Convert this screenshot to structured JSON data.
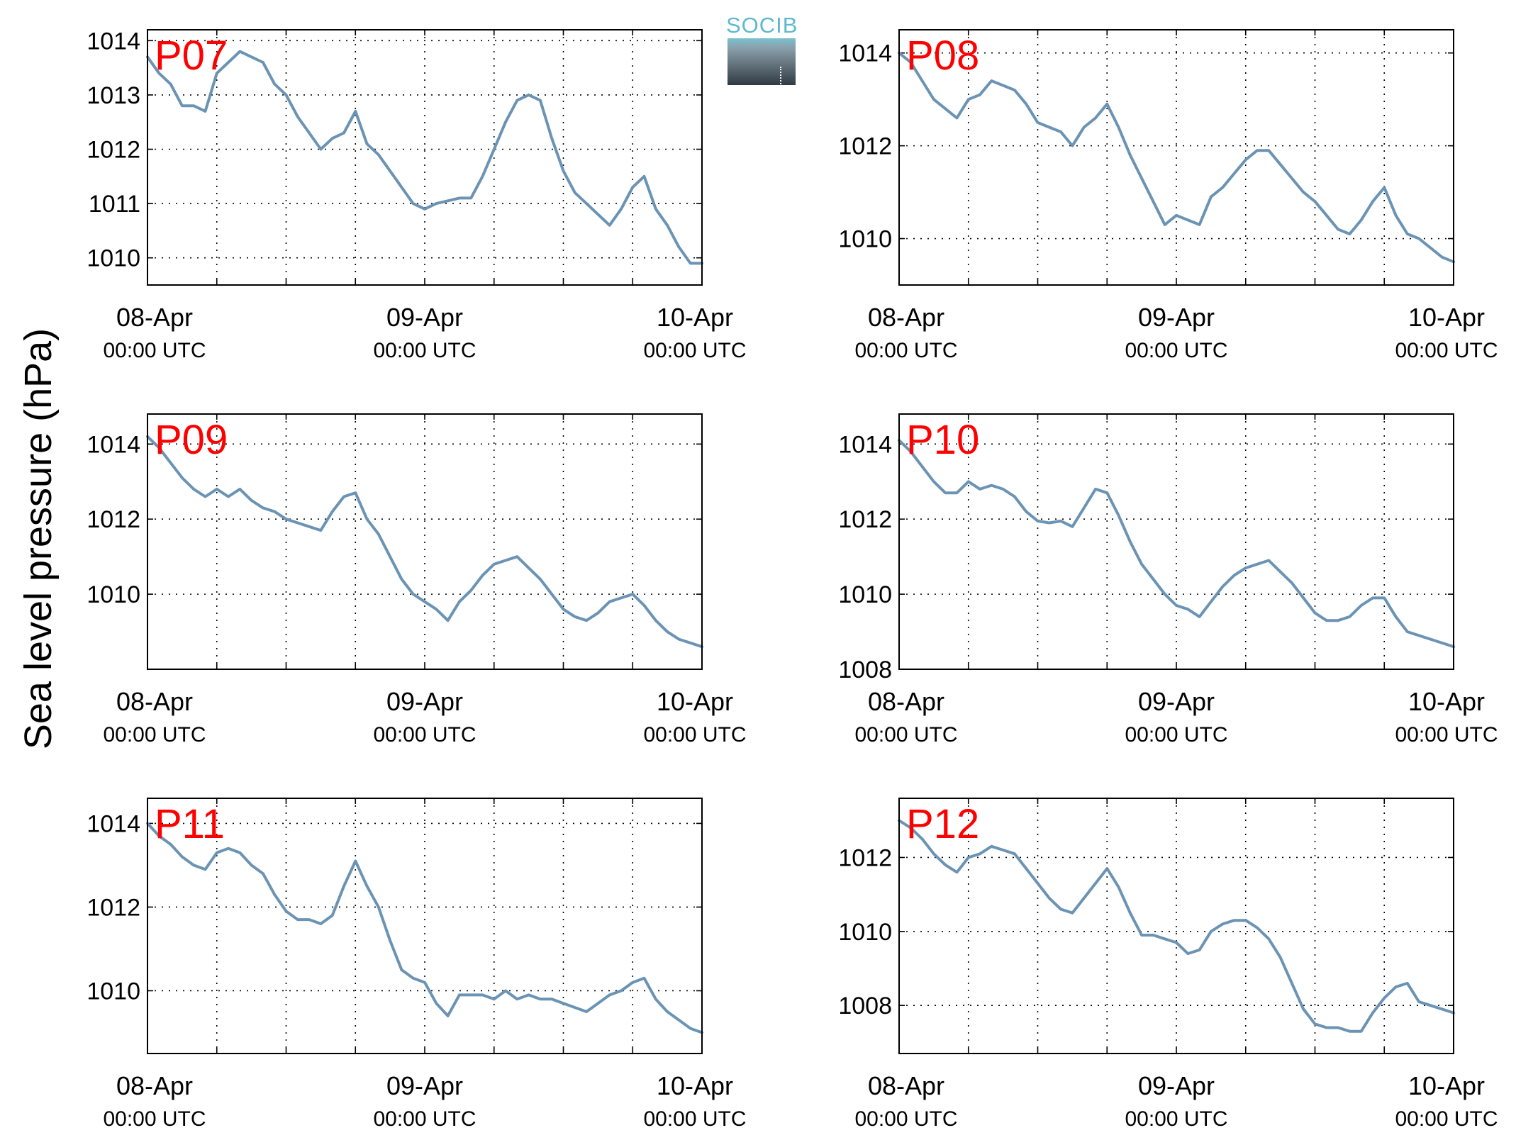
{
  "figure": {
    "ylabel": "Sea level pressure (hPa)",
    "logo_text": "SOCIB",
    "line_color": "#6b93b4",
    "station_label_color": "#ff0000",
    "x_tick_labels": [
      {
        "date": "08-Apr",
        "time": "00:00 UTC"
      },
      {
        "date": "09-Apr",
        "time": "00:00 UTC"
      },
      {
        "date": "10-Apr",
        "time": "00:00 UTC"
      }
    ],
    "grid": "dotted",
    "legend": "none"
  },
  "chart_data": [
    {
      "type": "line",
      "station": "P07",
      "xlabel": "",
      "xlim": [
        "2014-04-08 00:00",
        "2014-04-10 00:00"
      ],
      "ylim": [
        1009.5,
        1014.2
      ],
      "yticks": [
        1010,
        1011,
        1012,
        1013,
        1014
      ],
      "series": [
        {
          "x": [
            "04-08 00:00",
            "04-08 01:00",
            "04-08 02:00",
            "04-08 03:00",
            "04-08 04:00",
            "04-08 05:00",
            "04-08 06:00",
            "04-08 07:00",
            "04-08 08:00",
            "04-08 09:00",
            "04-08 10:00",
            "04-08 11:00",
            "04-08 12:00",
            "04-08 13:00",
            "04-08 14:00",
            "04-08 15:00",
            "04-08 16:00",
            "04-08 17:00",
            "04-08 18:00",
            "04-08 19:00",
            "04-08 20:00",
            "04-08 21:00",
            "04-08 22:00",
            "04-08 23:00",
            "04-09 00:00",
            "04-09 01:00",
            "04-09 02:00",
            "04-09 03:00",
            "04-09 04:00",
            "04-09 05:00",
            "04-09 06:00",
            "04-09 07:00",
            "04-09 08:00",
            "04-09 09:00",
            "04-09 10:00",
            "04-09 11:00",
            "04-09 12:00",
            "04-09 13:00",
            "04-09 14:00",
            "04-09 15:00",
            "04-09 16:00",
            "04-09 17:00",
            "04-09 18:00",
            "04-09 19:00",
            "04-09 20:00",
            "04-09 21:00",
            "04-09 22:00",
            "04-09 23:00",
            "04-10 00:00"
          ],
          "values": [
            1013.7,
            1013.4,
            1013.2,
            1012.8,
            1012.8,
            1012.7,
            1013.4,
            1013.6,
            1013.8,
            1013.7,
            1013.6,
            1013.2,
            1013.0,
            1012.6,
            1012.3,
            1012.0,
            1012.2,
            1012.3,
            1012.7,
            1012.1,
            1011.9,
            1011.6,
            1011.3,
            1011.0,
            1010.9,
            1011.0,
            1011.05,
            1011.1,
            1011.1,
            1011.5,
            1012.0,
            1012.5,
            1012.9,
            1013.0,
            1012.9,
            1012.2,
            1011.6,
            1011.2,
            1011.0,
            1010.8,
            1010.6,
            1010.9,
            1011.3,
            1011.5,
            1010.9,
            1010.6,
            1010.2,
            1009.9,
            1009.9
          ]
        }
      ]
    },
    {
      "type": "line",
      "station": "P08",
      "xlabel": "",
      "xlim": [
        "2014-04-08 00:00",
        "2014-04-10 00:00"
      ],
      "ylim": [
        1009.0,
        1014.5
      ],
      "yticks": [
        1010,
        1012,
        1014
      ],
      "series": [
        {
          "x": [
            "04-08 00:00",
            "04-08 01:00",
            "04-08 02:00",
            "04-08 03:00",
            "04-08 04:00",
            "04-08 05:00",
            "04-08 06:00",
            "04-08 07:00",
            "04-08 08:00",
            "04-08 09:00",
            "04-08 10:00",
            "04-08 11:00",
            "04-08 12:00",
            "04-08 13:00",
            "04-08 14:00",
            "04-08 15:00",
            "04-08 16:00",
            "04-08 17:00",
            "04-08 18:00",
            "04-08 19:00",
            "04-08 20:00",
            "04-08 21:00",
            "04-08 22:00",
            "04-08 23:00",
            "04-09 00:00",
            "04-09 01:00",
            "04-09 02:00",
            "04-09 03:00",
            "04-09 04:00",
            "04-09 05:00",
            "04-09 06:00",
            "04-09 07:00",
            "04-09 08:00",
            "04-09 09:00",
            "04-09 10:00",
            "04-09 11:00",
            "04-09 12:00",
            "04-09 13:00",
            "04-09 14:00",
            "04-09 15:00",
            "04-09 16:00",
            "04-09 17:00",
            "04-09 18:00",
            "04-09 19:00",
            "04-09 20:00",
            "04-09 21:00",
            "04-09 22:00",
            "04-09 23:00",
            "04-10 00:00"
          ],
          "values": [
            1014.0,
            1013.8,
            1013.4,
            1013.0,
            1012.8,
            1012.6,
            1013.0,
            1013.1,
            1013.4,
            1013.3,
            1013.2,
            1012.9,
            1012.5,
            1012.4,
            1012.3,
            1012.0,
            1012.4,
            1012.6,
            1012.9,
            1012.4,
            1011.8,
            1011.3,
            1010.8,
            1010.3,
            1010.5,
            1010.4,
            1010.3,
            1010.9,
            1011.1,
            1011.4,
            1011.7,
            1011.9,
            1011.9,
            1011.6,
            1011.3,
            1011.0,
            1010.8,
            1010.5,
            1010.2,
            1010.1,
            1010.4,
            1010.8,
            1011.1,
            1010.5,
            1010.1,
            1010.0,
            1009.8,
            1009.6,
            1009.5
          ]
        }
      ]
    },
    {
      "type": "line",
      "station": "P09",
      "xlabel": "",
      "xlim": [
        "2014-04-08 00:00",
        "2014-04-10 00:00"
      ],
      "ylim": [
        1008.0,
        1014.8
      ],
      "yticks": [
        1010,
        1012,
        1014
      ],
      "series": [
        {
          "x": [
            "04-08 00:00",
            "04-08 01:00",
            "04-08 02:00",
            "04-08 03:00",
            "04-08 04:00",
            "04-08 05:00",
            "04-08 06:00",
            "04-08 07:00",
            "04-08 08:00",
            "04-08 09:00",
            "04-08 10:00",
            "04-08 11:00",
            "04-08 12:00",
            "04-08 13:00",
            "04-08 14:00",
            "04-08 15:00",
            "04-08 16:00",
            "04-08 17:00",
            "04-08 18:00",
            "04-08 19:00",
            "04-08 20:00",
            "04-08 21:00",
            "04-08 22:00",
            "04-08 23:00",
            "04-09 00:00",
            "04-09 01:00",
            "04-09 02:00",
            "04-09 03:00",
            "04-09 04:00",
            "04-09 05:00",
            "04-09 06:00",
            "04-09 07:00",
            "04-09 08:00",
            "04-09 09:00",
            "04-09 10:00",
            "04-09 11:00",
            "04-09 12:00",
            "04-09 13:00",
            "04-09 14:00",
            "04-09 15:00",
            "04-09 16:00",
            "04-09 17:00",
            "04-09 18:00",
            "04-09 19:00",
            "04-09 20:00",
            "04-09 21:00",
            "04-09 22:00",
            "04-09 23:00",
            "04-10 00:00"
          ],
          "values": [
            1014.2,
            1013.9,
            1013.5,
            1013.1,
            1012.8,
            1012.6,
            1012.8,
            1012.6,
            1012.8,
            1012.5,
            1012.3,
            1012.2,
            1012.0,
            1011.9,
            1011.8,
            1011.7,
            1012.2,
            1012.6,
            1012.7,
            1012.0,
            1011.6,
            1011.0,
            1010.4,
            1010.0,
            1009.8,
            1009.6,
            1009.3,
            1009.8,
            1010.1,
            1010.5,
            1010.8,
            1010.9,
            1011.0,
            1010.7,
            1010.4,
            1010.0,
            1009.6,
            1009.4,
            1009.3,
            1009.5,
            1009.8,
            1009.9,
            1010.0,
            1009.7,
            1009.3,
            1009.0,
            1008.8,
            1008.7,
            1008.6
          ]
        }
      ]
    },
    {
      "type": "line",
      "station": "P10",
      "xlabel": "",
      "xlim": [
        "2014-04-08 00:00",
        "2014-04-10 00:00"
      ],
      "ylim": [
        1008.0,
        1014.8
      ],
      "yticks": [
        1008,
        1010,
        1012,
        1014
      ],
      "series": [
        {
          "x": [
            "04-08 00:00",
            "04-08 01:00",
            "04-08 02:00",
            "04-08 03:00",
            "04-08 04:00",
            "04-08 05:00",
            "04-08 06:00",
            "04-08 07:00",
            "04-08 08:00",
            "04-08 09:00",
            "04-08 10:00",
            "04-08 11:00",
            "04-08 12:00",
            "04-08 13:00",
            "04-08 14:00",
            "04-08 15:00",
            "04-08 16:00",
            "04-08 17:00",
            "04-08 18:00",
            "04-08 19:00",
            "04-08 20:00",
            "04-08 21:00",
            "04-08 22:00",
            "04-08 23:00",
            "04-09 00:00",
            "04-09 01:00",
            "04-09 02:00",
            "04-09 03:00",
            "04-09 04:00",
            "04-09 05:00",
            "04-09 06:00",
            "04-09 07:00",
            "04-09 08:00",
            "04-09 09:00",
            "04-09 10:00",
            "04-09 11:00",
            "04-09 12:00",
            "04-09 13:00",
            "04-09 14:00",
            "04-09 15:00",
            "04-09 16:00",
            "04-09 17:00",
            "04-09 18:00",
            "04-09 19:00",
            "04-09 20:00",
            "04-09 21:00",
            "04-09 22:00",
            "04-09 23:00",
            "04-10 00:00"
          ],
          "values": [
            1014.1,
            1013.8,
            1013.4,
            1013.0,
            1012.7,
            1012.7,
            1013.0,
            1012.8,
            1012.9,
            1012.8,
            1012.6,
            1012.2,
            1011.95,
            1011.9,
            1011.95,
            1011.8,
            1012.3,
            1012.8,
            1012.7,
            1012.1,
            1011.4,
            1010.8,
            1010.4,
            1010.0,
            1009.7,
            1009.6,
            1009.4,
            1009.8,
            1010.2,
            1010.5,
            1010.7,
            1010.8,
            1010.9,
            1010.6,
            1010.3,
            1009.9,
            1009.5,
            1009.3,
            1009.3,
            1009.4,
            1009.7,
            1009.9,
            1009.9,
            1009.4,
            1009.0,
            1008.9,
            1008.8,
            1008.7,
            1008.6
          ]
        }
      ]
    },
    {
      "type": "line",
      "station": "P11",
      "xlabel": "",
      "xlim": [
        "2014-04-08 00:00",
        "2014-04-10 00:00"
      ],
      "ylim": [
        1008.5,
        1014.6
      ],
      "yticks": [
        1010,
        1012,
        1014
      ],
      "series": [
        {
          "x": [
            "04-08 00:00",
            "04-08 01:00",
            "04-08 02:00",
            "04-08 03:00",
            "04-08 04:00",
            "04-08 05:00",
            "04-08 06:00",
            "04-08 07:00",
            "04-08 08:00",
            "04-08 09:00",
            "04-08 10:00",
            "04-08 11:00",
            "04-08 12:00",
            "04-08 13:00",
            "04-08 14:00",
            "04-08 15:00",
            "04-08 16:00",
            "04-08 17:00",
            "04-08 18:00",
            "04-08 19:00",
            "04-08 20:00",
            "04-08 21:00",
            "04-08 22:00",
            "04-08 23:00",
            "04-09 00:00",
            "04-09 01:00",
            "04-09 02:00",
            "04-09 03:00",
            "04-09 04:00",
            "04-09 05:00",
            "04-09 06:00",
            "04-09 07:00",
            "04-09 08:00",
            "04-09 09:00",
            "04-09 10:00",
            "04-09 11:00",
            "04-09 12:00",
            "04-09 13:00",
            "04-09 14:00",
            "04-09 15:00",
            "04-09 16:00",
            "04-09 17:00",
            "04-09 18:00",
            "04-09 19:00",
            "04-09 20:00",
            "04-09 21:00",
            "04-09 22:00",
            "04-09 23:00",
            "04-10 00:00"
          ],
          "values": [
            1014.0,
            1013.7,
            1013.5,
            1013.2,
            1013.0,
            1012.9,
            1013.3,
            1013.4,
            1013.3,
            1013.0,
            1012.8,
            1012.3,
            1011.9,
            1011.7,
            1011.7,
            1011.6,
            1011.8,
            1012.5,
            1013.1,
            1012.5,
            1012.0,
            1011.2,
            1010.5,
            1010.3,
            1010.2,
            1009.7,
            1009.4,
            1009.9,
            1009.9,
            1009.9,
            1009.8,
            1010.0,
            1009.8,
            1009.9,
            1009.8,
            1009.8,
            1009.7,
            1009.6,
            1009.5,
            1009.7,
            1009.9,
            1010.0,
            1010.2,
            1010.3,
            1009.8,
            1009.5,
            1009.3,
            1009.1,
            1009.0
          ]
        }
      ]
    },
    {
      "type": "line",
      "station": "P12",
      "xlabel": "",
      "xlim": [
        "2014-04-08 00:00",
        "2014-04-10 00:00"
      ],
      "ylim": [
        1006.7,
        1013.6
      ],
      "yticks": [
        1008,
        1010,
        1012
      ],
      "series": [
        {
          "x": [
            "04-08 00:00",
            "04-08 01:00",
            "04-08 02:00",
            "04-08 03:00",
            "04-08 04:00",
            "04-08 05:00",
            "04-08 06:00",
            "04-08 07:00",
            "04-08 08:00",
            "04-08 09:00",
            "04-08 10:00",
            "04-08 11:00",
            "04-08 12:00",
            "04-08 13:00",
            "04-08 14:00",
            "04-08 15:00",
            "04-08 16:00",
            "04-08 17:00",
            "04-08 18:00",
            "04-08 19:00",
            "04-08 20:00",
            "04-08 21:00",
            "04-08 22:00",
            "04-08 23:00",
            "04-09 00:00",
            "04-09 01:00",
            "04-09 02:00",
            "04-09 03:00",
            "04-09 04:00",
            "04-09 05:00",
            "04-09 06:00",
            "04-09 07:00",
            "04-09 08:00",
            "04-09 09:00",
            "04-09 10:00",
            "04-09 11:00",
            "04-09 12:00",
            "04-09 13:00",
            "04-09 14:00",
            "04-09 15:00",
            "04-09 16:00",
            "04-09 17:00",
            "04-09 18:00",
            "04-09 19:00",
            "04-09 20:00",
            "04-09 21:00",
            "04-09 22:00",
            "04-09 23:00",
            "04-10 00:00"
          ],
          "values": [
            1013.0,
            1012.8,
            1012.5,
            1012.1,
            1011.8,
            1011.6,
            1012.0,
            1012.1,
            1012.3,
            1012.2,
            1012.1,
            1011.7,
            1011.3,
            1010.9,
            1010.6,
            1010.5,
            1010.9,
            1011.3,
            1011.7,
            1011.2,
            1010.5,
            1009.9,
            1009.9,
            1009.8,
            1009.7,
            1009.4,
            1009.5,
            1010.0,
            1010.2,
            1010.3,
            1010.3,
            1010.1,
            1009.8,
            1009.3,
            1008.6,
            1007.9,
            1007.5,
            1007.4,
            1007.4,
            1007.3,
            1007.3,
            1007.8,
            1008.2,
            1008.5,
            1008.6,
            1008.1,
            1008.0,
            1007.9,
            1007.8
          ]
        }
      ]
    }
  ]
}
